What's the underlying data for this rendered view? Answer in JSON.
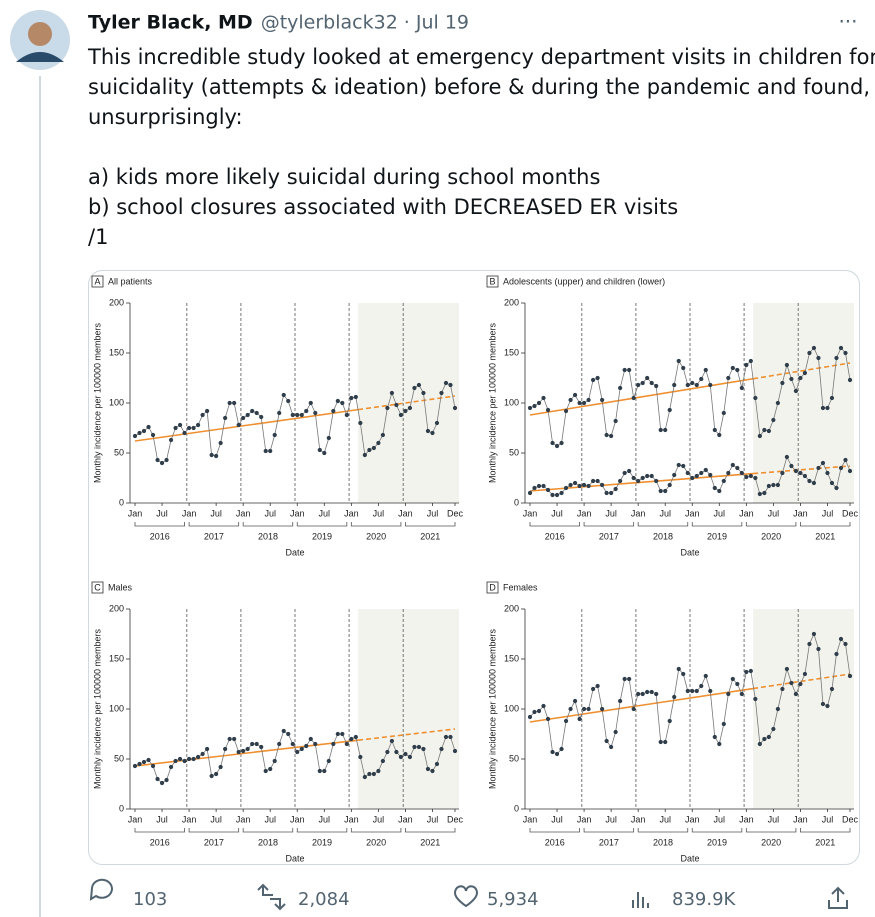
{
  "tweet": {
    "author": "Tyler Black, MD",
    "handle": "@tylerblack32",
    "date": "· Jul 19",
    "text_lines": [
      "This incredible study looked at emergency department visits in children for",
      "suicidality (attempts & ideation) before & during the pandemic and found,",
      "unsurprisingly:",
      "a) kids more likely suicidal during school months",
      "b) school closures associated with DECREASED ER visits",
      "/1"
    ],
    "stats": {
      "replies": "103",
      "retweets": "2,084",
      "likes": "5,934",
      "views": "839.9K"
    }
  },
  "chart_data": [
    {
      "type": "line",
      "panel": "A",
      "title": "All patients",
      "xlabel": "Date",
      "ylabel": "Monthly incidence per 100000 members",
      "categories": [
        "Jan",
        null,
        null,
        null,
        null,
        null,
        "Jul",
        null,
        null,
        null,
        null,
        null,
        "Jan",
        null,
        null,
        null,
        null,
        null,
        "Jul",
        null,
        null,
        null,
        null,
        null,
        "Jan",
        null,
        null,
        null,
        null,
        null,
        "Jul",
        null,
        null,
        null,
        null,
        null,
        "Jan",
        null,
        null,
        null,
        null,
        null,
        "Jul",
        null,
        null,
        null,
        null,
        null,
        "Jan",
        null,
        null,
        null,
        null,
        null,
        "Jul",
        null,
        null,
        null,
        null,
        null,
        "Jan",
        null,
        null,
        null,
        null,
        null,
        "Jul",
        null,
        null,
        null,
        null,
        "Dec"
      ],
      "years": [
        "2016",
        "2017",
        "2018",
        "2019",
        "2020",
        "2021"
      ],
      "ylim": [
        0,
        200
      ],
      "yticks": [
        0,
        50,
        100,
        150,
        200
      ],
      "series": [
        {
          "color": "#2f3e4a",
          "values": [
            67,
            70,
            72,
            76,
            68,
            43,
            40,
            43,
            63,
            75,
            78,
            70,
            75,
            75,
            78,
            88,
            92,
            48,
            47,
            60,
            85,
            100,
            100,
            78,
            85,
            88,
            92,
            90,
            86,
            52,
            52,
            68,
            90,
            108,
            102,
            88,
            88,
            88,
            92,
            100,
            90,
            53,
            50,
            65,
            92,
            102,
            100,
            88,
            105,
            106,
            80,
            48,
            53,
            55,
            60,
            68,
            95,
            110,
            98,
            88,
            92,
            95,
            115,
            118,
            110,
            72,
            70,
            80,
            110,
            120,
            118,
            95
          ]
        }
      ],
      "trends": [
        {
          "color": "#ef8f2f",
          "start": 62,
          "end": 107
        }
      ]
    },
    {
      "type": "line",
      "panel": "B",
      "title": "Adolescents (upper) and children (lower)",
      "xlabel": "Date",
      "ylabel": "Monthly incidence per 100000 members",
      "categories": [
        "Jan",
        null,
        null,
        null,
        null,
        null,
        "Jul",
        null,
        null,
        null,
        null,
        null,
        "Jan",
        null,
        null,
        null,
        null,
        null,
        "Jul",
        null,
        null,
        null,
        null,
        null,
        "Jan",
        null,
        null,
        null,
        null,
        null,
        "Jul",
        null,
        null,
        null,
        null,
        null,
        "Jan",
        null,
        null,
        null,
        null,
        null,
        "Jul",
        null,
        null,
        null,
        null,
        null,
        "Jan",
        null,
        null,
        null,
        null,
        null,
        "Jul",
        null,
        null,
        null,
        null,
        null,
        "Jan",
        null,
        null,
        null,
        null,
        null,
        "Jul",
        null,
        null,
        null,
        null,
        "Dec"
      ],
      "years": [
        "2016",
        "2017",
        "2018",
        "2019",
        "2020",
        "2021"
      ],
      "ylim": [
        0,
        200
      ],
      "yticks": [
        0,
        50,
        100,
        150,
        200
      ],
      "series": [
        {
          "color": "#2f3e4a",
          "values": [
            95,
            97,
            100,
            105,
            93,
            60,
            57,
            60,
            92,
            103,
            108,
            100,
            100,
            103,
            123,
            125,
            103,
            68,
            67,
            82,
            115,
            133,
            133,
            105,
            118,
            120,
            125,
            120,
            117,
            73,
            73,
            93,
            118,
            142,
            135,
            118,
            120,
            118,
            124,
            133,
            118,
            73,
            68,
            90,
            125,
            135,
            133,
            115,
            138,
            142,
            105,
            67,
            73,
            72,
            83,
            100,
            120,
            138,
            124,
            112,
            125,
            130,
            150,
            155,
            145,
            95,
            95,
            105,
            145,
            155,
            150,
            123
          ]
        },
        {
          "color": "#2f3e4a",
          "values": [
            10,
            15,
            17,
            17,
            13,
            8,
            8,
            10,
            15,
            18,
            20,
            17,
            18,
            17,
            22,
            22,
            18,
            10,
            10,
            14,
            22,
            30,
            32,
            25,
            22,
            25,
            27,
            27,
            22,
            12,
            12,
            18,
            28,
            38,
            37,
            30,
            25,
            27,
            30,
            33,
            28,
            15,
            12,
            22,
            30,
            38,
            35,
            30,
            26,
            27,
            25,
            9,
            10,
            17,
            18,
            18,
            30,
            46,
            37,
            32,
            30,
            27,
            22,
            20,
            35,
            40,
            30,
            20,
            15,
            35,
            43,
            32
          ]
        }
      ],
      "trends": [
        {
          "color": "#ef8f2f",
          "start": 88,
          "end": 140
        },
        {
          "color": "#ef8f2f",
          "start": 12,
          "end": 37
        }
      ]
    },
    {
      "type": "line",
      "panel": "C",
      "title": "Males",
      "xlabel": "Date",
      "ylabel": "Monthly incidence per 100000 members",
      "categories": [
        "Jan",
        null,
        null,
        null,
        null,
        null,
        "Jul",
        null,
        null,
        null,
        null,
        null,
        "Jan",
        null,
        null,
        null,
        null,
        null,
        "Jul",
        null,
        null,
        null,
        null,
        null,
        "Jan",
        null,
        null,
        null,
        null,
        null,
        "Jul",
        null,
        null,
        null,
        null,
        null,
        "Jan",
        null,
        null,
        null,
        null,
        null,
        "Jul",
        null,
        null,
        null,
        null,
        null,
        "Jan",
        null,
        null,
        null,
        null,
        null,
        "Jul",
        null,
        null,
        null,
        null,
        null,
        "Jan",
        null,
        null,
        null,
        null,
        null,
        "Jul",
        null,
        null,
        null,
        null,
        "Dec"
      ],
      "years": [
        "2016",
        "2017",
        "2018",
        "2019",
        "2020",
        "2021"
      ],
      "ylim": [
        0,
        200
      ],
      "yticks": [
        0,
        50,
        100,
        150,
        200
      ],
      "series": [
        {
          "color": "#2f3e4a",
          "values": [
            43,
            45,
            47,
            49,
            43,
            30,
            26,
            29,
            42,
            48,
            50,
            48,
            50,
            50,
            52,
            55,
            60,
            33,
            35,
            42,
            60,
            70,
            70,
            57,
            58,
            60,
            65,
            65,
            62,
            38,
            40,
            48,
            65,
            78,
            75,
            65,
            57,
            60,
            63,
            70,
            65,
            38,
            38,
            48,
            65,
            75,
            75,
            65,
            70,
            72,
            52,
            32,
            35,
            35,
            38,
            48,
            57,
            68,
            57,
            52,
            55,
            52,
            62,
            62,
            60,
            40,
            38,
            45,
            60,
            72,
            72,
            58
          ]
        }
      ],
      "trends": [
        {
          "color": "#ef8f2f",
          "start": 43,
          "end": 80
        }
      ]
    },
    {
      "type": "line",
      "panel": "D",
      "title": "Females",
      "xlabel": "Date",
      "ylabel": "Monthly incidence per 100000 members",
      "categories": [
        "Jan",
        null,
        null,
        null,
        null,
        null,
        "Jul",
        null,
        null,
        null,
        null,
        null,
        "Jan",
        null,
        null,
        null,
        null,
        null,
        "Jul",
        null,
        null,
        null,
        null,
        null,
        "Jan",
        null,
        null,
        null,
        null,
        null,
        "Jul",
        null,
        null,
        null,
        null,
        null,
        "Jan",
        null,
        null,
        null,
        null,
        null,
        "Jul",
        null,
        null,
        null,
        null,
        null,
        "Jan",
        null,
        null,
        null,
        null,
        null,
        "Jul",
        null,
        null,
        null,
        null,
        null,
        "Jan",
        null,
        null,
        null,
        null,
        null,
        "Jul",
        null,
        null,
        null,
        null,
        "Dec"
      ],
      "years": [
        "2016",
        "2017",
        "2018",
        "2019",
        "2020",
        "2021"
      ],
      "ylim": [
        0,
        200
      ],
      "yticks": [
        0,
        50,
        100,
        150,
        200
      ],
      "series": [
        {
          "color": "#2f3e4a",
          "values": [
            92,
            97,
            98,
            103,
            90,
            57,
            55,
            60,
            88,
            100,
            108,
            90,
            100,
            100,
            120,
            123,
            100,
            68,
            62,
            77,
            108,
            130,
            130,
            100,
            115,
            115,
            117,
            117,
            115,
            67,
            67,
            88,
            112,
            140,
            135,
            118,
            118,
            118,
            123,
            133,
            118,
            72,
            65,
            85,
            115,
            130,
            125,
            115,
            137,
            138,
            110,
            65,
            70,
            72,
            80,
            100,
            120,
            140,
            126,
            115,
            125,
            135,
            165,
            175,
            160,
            105,
            103,
            120,
            155,
            170,
            165,
            133
          ]
        }
      ],
      "trends": [
        {
          "color": "#ef8f2f",
          "start": 87,
          "end": 135
        }
      ]
    }
  ]
}
